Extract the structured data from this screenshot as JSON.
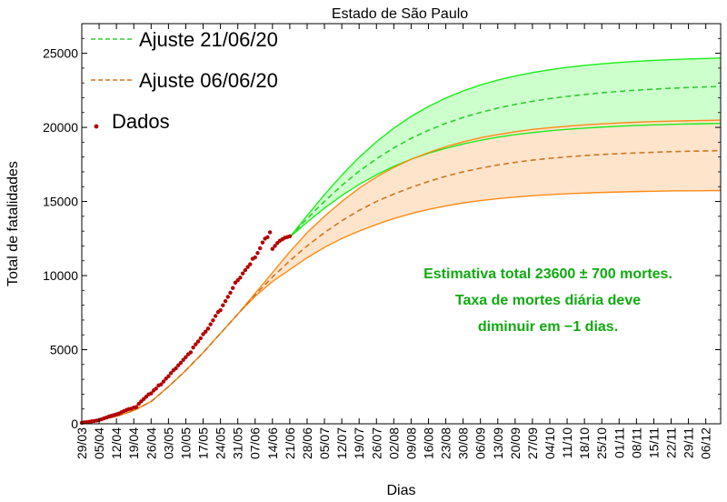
{
  "chart_data": {
    "type": "line",
    "title": "Estado de São Paulo",
    "xlabel": "Dias",
    "ylabel": "Total de fatalidades",
    "x_start_label": "29/03",
    "xlim_days": [
      0,
      258
    ],
    "ylim": [
      0,
      27000
    ],
    "y_ticks": [
      0,
      5000,
      10000,
      15000,
      20000,
      25000
    ],
    "x_ticks": [
      {
        "day": 0,
        "label": "29/03"
      },
      {
        "day": 7,
        "label": "05/04"
      },
      {
        "day": 14,
        "label": "12/04"
      },
      {
        "day": 21,
        "label": "19/04"
      },
      {
        "day": 28,
        "label": "26/04"
      },
      {
        "day": 35,
        "label": "03/05"
      },
      {
        "day": 42,
        "label": "10/05"
      },
      {
        "day": 49,
        "label": "17/05"
      },
      {
        "day": 56,
        "label": "24/05"
      },
      {
        "day": 63,
        "label": "31/05"
      },
      {
        "day": 70,
        "label": "07/06"
      },
      {
        "day": 77,
        "label": "14/06"
      },
      {
        "day": 84,
        "label": "21/06"
      },
      {
        "day": 91,
        "label": "28/06"
      },
      {
        "day": 98,
        "label": "05/07"
      },
      {
        "day": 105,
        "label": "12/07"
      },
      {
        "day": 112,
        "label": "19/07"
      },
      {
        "day": 119,
        "label": "26/07"
      },
      {
        "day": 126,
        "label": "02/08"
      },
      {
        "day": 133,
        "label": "09/08"
      },
      {
        "day": 140,
        "label": "16/08"
      },
      {
        "day": 147,
        "label": "23/08"
      },
      {
        "day": 154,
        "label": "30/08"
      },
      {
        "day": 161,
        "label": "06/09"
      },
      {
        "day": 168,
        "label": "13/09"
      },
      {
        "day": 175,
        "label": "20/09"
      },
      {
        "day": 182,
        "label": "27/09"
      },
      {
        "day": 189,
        "label": "04/10"
      },
      {
        "day": 196,
        "label": "11/10"
      },
      {
        "day": 203,
        "label": "18/10"
      },
      {
        "day": 210,
        "label": "25/10"
      },
      {
        "day": 217,
        "label": "01/11"
      },
      {
        "day": 224,
        "label": "08/11"
      },
      {
        "day": 231,
        "label": "15/11"
      },
      {
        "day": 238,
        "label": "22/11"
      },
      {
        "day": 245,
        "label": "29/11"
      },
      {
        "day": 252,
        "label": "06/12"
      }
    ],
    "grid": false,
    "legend_position": "top-left",
    "series": [
      {
        "name": "Ajuste 21/06/20",
        "style": "dashed",
        "color": "#33cc33",
        "band_color": "#1aee1a",
        "band_fill": "#ccffcc",
        "x_start": 84,
        "x": [
          84,
          91,
          98,
          105,
          112,
          119,
          126,
          133,
          140,
          147,
          154,
          161,
          168,
          175,
          182,
          189,
          196,
          203,
          210,
          217,
          224,
          231,
          238,
          245,
          252,
          258
        ],
        "values": [
          12600,
          13840,
          15010,
          16080,
          17040,
          17880,
          18620,
          19260,
          19800,
          20270,
          20670,
          21010,
          21300,
          21550,
          21760,
          21940,
          22090,
          22220,
          22330,
          22430,
          22510,
          22580,
          22640,
          22690,
          22730,
          22760
        ],
        "upper": [
          12600,
          14050,
          15460,
          16780,
          17980,
          19030,
          19950,
          20740,
          21410,
          21980,
          22460,
          22860,
          23190,
          23470,
          23700,
          23890,
          24050,
          24180,
          24290,
          24380,
          24460,
          24520,
          24570,
          24610,
          24650,
          24680
        ],
        "lower": [
          12600,
          13600,
          14550,
          15400,
          16150,
          16800,
          17370,
          17850,
          18250,
          18590,
          18880,
          19130,
          19340,
          19510,
          19650,
          19770,
          19870,
          19950,
          20020,
          20080,
          20130,
          20170,
          20200,
          20230,
          20250,
          20270
        ]
      },
      {
        "name": "Ajuste 06/06/20",
        "style": "dashed",
        "color": "#cc7722",
        "band_color": "#ff8a14",
        "band_fill": "#ffe4cc",
        "x": [
          0,
          7,
          14,
          21,
          28,
          35,
          42,
          49,
          56,
          63,
          70,
          77,
          84,
          91,
          98,
          105,
          112,
          119,
          126,
          133,
          140,
          147,
          154,
          161,
          168,
          175,
          182,
          189,
          196,
          203,
          210,
          217,
          224,
          231,
          238,
          245,
          252,
          258
        ],
        "values": [
          80,
          250,
          500,
          900,
          1500,
          2500,
          3600,
          4800,
          6100,
          7400,
          8700,
          9900,
          11000,
          12000,
          12900,
          13700,
          14400,
          15000,
          15500,
          15950,
          16350,
          16700,
          17000,
          17250,
          17460,
          17640,
          17790,
          17910,
          18010,
          18100,
          18170,
          18230,
          18280,
          18320,
          18360,
          18390,
          18410,
          18430
        ],
        "upper": [
          80,
          250,
          500,
          900,
          1500,
          2500,
          3600,
          4800,
          6100,
          7400,
          8800,
          10200,
          11600,
          12900,
          14000,
          15000,
          15900,
          16650,
          17300,
          17850,
          18300,
          18700,
          19020,
          19300,
          19520,
          19700,
          19860,
          19980,
          20080,
          20170,
          20240,
          20300,
          20350,
          20390,
          20420,
          20450,
          20470,
          20490
        ],
        "lower": [
          80,
          250,
          500,
          900,
          1500,
          2500,
          3600,
          4800,
          6100,
          7400,
          8600,
          9600,
          10400,
          11200,
          11900,
          12500,
          13000,
          13450,
          13850,
          14180,
          14460,
          14700,
          14900,
          15060,
          15190,
          15300,
          15390,
          15460,
          15520,
          15570,
          15610,
          15640,
          15670,
          15690,
          15710,
          15720,
          15730,
          15740
        ]
      },
      {
        "name": "Dados",
        "style": "points",
        "color": "#b30000",
        "x": [
          0,
          1,
          2,
          3,
          4,
          5,
          6,
          7,
          8,
          9,
          10,
          11,
          12,
          13,
          14,
          15,
          16,
          17,
          18,
          19,
          20,
          21,
          22,
          23,
          24,
          25,
          26,
          27,
          28,
          29,
          30,
          31,
          32,
          33,
          34,
          35,
          36,
          37,
          38,
          39,
          40,
          41,
          42,
          43,
          44,
          45,
          46,
          47,
          48,
          49,
          50,
          51,
          52,
          53,
          54,
          55,
          56,
          57,
          58,
          59,
          60,
          61,
          62,
          63,
          64,
          65,
          66,
          67,
          68,
          69,
          70,
          71,
          72,
          73,
          74,
          75,
          76,
          77,
          78,
          79,
          80,
          81,
          82,
          83,
          84
        ],
        "values": [
          68,
          98,
          113,
          136,
          164,
          188,
          220,
          260,
          304,
          371,
          428,
          496,
          540,
          588,
          640,
          695,
          778,
          853,
          928,
          991,
          1015,
          1093,
          1134,
          1345,
          1512,
          1667,
          1825,
          1982,
          2049,
          2247,
          2375,
          2586,
          2654,
          2851,
          3045,
          3206,
          3416,
          3608,
          3743,
          3949,
          4118,
          4315,
          4501,
          4688,
          4823,
          5147,
          5363,
          5558,
          5773,
          6045,
          6220,
          6423,
          6712,
          6980,
          7275,
          7532,
          7667,
          7994,
          8276,
          8561,
          8843,
          9162,
          9522,
          9680,
          9862,
          10145,
          10368,
          10581,
          10767,
          11132,
          11228,
          11521,
          11846,
          12232,
          12494,
          12588,
          12920,
          11800,
          12000,
          12200,
          12350,
          12450,
          12550,
          12600,
          12650
        ]
      }
    ],
    "annotation": [
      "Estimativa total 23600 ± 700 mortes.",
      "Taxa de mortes diária deve",
      "diminuir em −1 dias."
    ],
    "annotation_color": "#11aa11"
  }
}
